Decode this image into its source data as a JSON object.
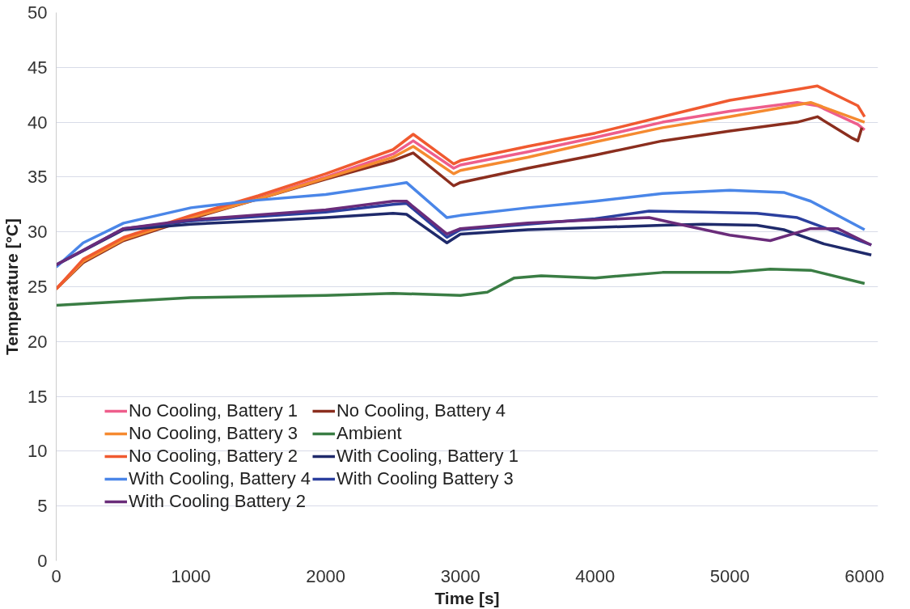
{
  "chart_data": {
    "type": "line",
    "xlabel": "Time [s]",
    "ylabel": "Temperature [°C]",
    "xlim": [
      0,
      6100
    ],
    "ylim": [
      0,
      50
    ],
    "xticks": [
      0,
      1000,
      2000,
      3000,
      4000,
      5000,
      6000
    ],
    "yticks": [
      0,
      5,
      10,
      15,
      20,
      25,
      30,
      35,
      40,
      45,
      50
    ],
    "grid": "y",
    "legend": "bottom left",
    "line_style": "solid",
    "marker": "none",
    "series": [
      {
        "name": "No Cooling, Battery 1",
        "color": "#ee5e8c",
        "x": [
          0,
          200,
          500,
          1000,
          1500,
          2000,
          2500,
          2650,
          2950,
          3000,
          3500,
          4000,
          4500,
          5000,
          5500,
          5650,
          5950,
          6000
        ],
        "values": [
          24.8,
          27.3,
          29.3,
          31.3,
          33.1,
          35,
          37.1,
          38.3,
          35.8,
          36.1,
          37.3,
          38.6,
          40,
          41,
          41.8,
          41.5,
          39.8,
          39.3
        ]
      },
      {
        "name": "No Cooling, Battery 4",
        "color": "#8b2e1e",
        "x": [
          0,
          200,
          500,
          1000,
          1500,
          2000,
          2500,
          2650,
          2950,
          3000,
          3500,
          4000,
          4500,
          5000,
          5500,
          5650,
          5900,
          5950,
          5980
        ],
        "values": [
          24.8,
          27.2,
          29.2,
          31.2,
          33,
          34.8,
          36.5,
          37.2,
          34.2,
          34.5,
          35.8,
          37,
          38.3,
          39.2,
          40,
          40.5,
          38.6,
          38.3,
          39.5
        ]
      },
      {
        "name": "No Cooling, Battery 3",
        "color": "#f58a30",
        "x": [
          0,
          200,
          500,
          1000,
          1500,
          2000,
          2500,
          2650,
          2950,
          3000,
          3500,
          4000,
          4500,
          5000,
          5600,
          6000
        ],
        "values": [
          24.8,
          27.3,
          29.3,
          31.3,
          33,
          34.9,
          36.8,
          37.8,
          35.3,
          35.6,
          36.8,
          38.2,
          39.5,
          40.5,
          41.8,
          40
        ]
      },
      {
        "name": "Ambient",
        "color": "#3a7d44",
        "x": [
          0,
          1000,
          2000,
          2500,
          3000,
          3200,
          3400,
          3600,
          4000,
          4500,
          5000,
          5300,
          5600,
          6000
        ],
        "values": [
          23.3,
          24,
          24.2,
          24.4,
          24.2,
          24.5,
          25.8,
          26,
          25.8,
          26.3,
          26.3,
          26.6,
          26.5,
          25.3
        ]
      },
      {
        "name": "No Cooling, Battery 2",
        "color": "#f05a30",
        "x": [
          0,
          200,
          500,
          1000,
          1500,
          2000,
          2500,
          2650,
          2950,
          3000,
          3500,
          4000,
          4500,
          5000,
          5500,
          5650,
          5950,
          6000
        ],
        "values": [
          24.8,
          27.5,
          29.5,
          31.5,
          33.3,
          35.3,
          37.5,
          38.9,
          36.2,
          36.5,
          37.8,
          39,
          40.5,
          42,
          43,
          43.3,
          41.5,
          40.5
        ]
      },
      {
        "name": "With Cooling, Battery 1",
        "color": "#1f2a6b",
        "x": [
          0,
          500,
          1000,
          1500,
          2000,
          2500,
          2600,
          2900,
          3000,
          3500,
          4000,
          4500,
          4800,
          5200,
          5400,
          5700,
          6050
        ],
        "values": [
          27,
          30.2,
          30.7,
          31,
          31.3,
          31.7,
          31.6,
          29,
          29.8,
          30.2,
          30.4,
          30.6,
          30.7,
          30.6,
          30.2,
          28.9,
          27.9
        ]
      },
      {
        "name": "With Cooling, Battery 4",
        "color": "#4a86e8",
        "x": [
          0,
          200,
          500,
          1000,
          1500,
          2000,
          2500,
          2600,
          2900,
          3000,
          3500,
          4000,
          4500,
          5000,
          5400,
          5600,
          6000
        ],
        "values": [
          26.8,
          29,
          30.8,
          32.2,
          32.9,
          33.4,
          34.3,
          34.5,
          31.3,
          31.5,
          32.2,
          32.8,
          33.5,
          33.8,
          33.6,
          32.8,
          30.2
        ]
      },
      {
        "name": "With Cooling Battery 3",
        "color": "#2b3f9e",
        "x": [
          0,
          500,
          1000,
          2000,
          2500,
          2600,
          2900,
          3000,
          3500,
          4000,
          4400,
          4800,
          5200,
          5500,
          6050
        ],
        "values": [
          27,
          30.3,
          31,
          31.8,
          32.5,
          32.6,
          29.5,
          30.2,
          30.7,
          31.2,
          31.9,
          31.8,
          31.7,
          31.3,
          28.8
        ]
      },
      {
        "name": "With Cooling Battery 2",
        "color": "#6a2c7a",
        "x": [
          0,
          500,
          1000,
          2000,
          2500,
          2600,
          2900,
          3000,
          3500,
          4000,
          4400,
          4700,
          5000,
          5300,
          5600,
          5800,
          6050
        ],
        "values": [
          27,
          30.3,
          31.1,
          32,
          32.8,
          32.8,
          29.8,
          30.3,
          30.8,
          31.1,
          31.3,
          30.5,
          29.7,
          29.2,
          30.3,
          30.3,
          28.8
        ]
      }
    ]
  }
}
